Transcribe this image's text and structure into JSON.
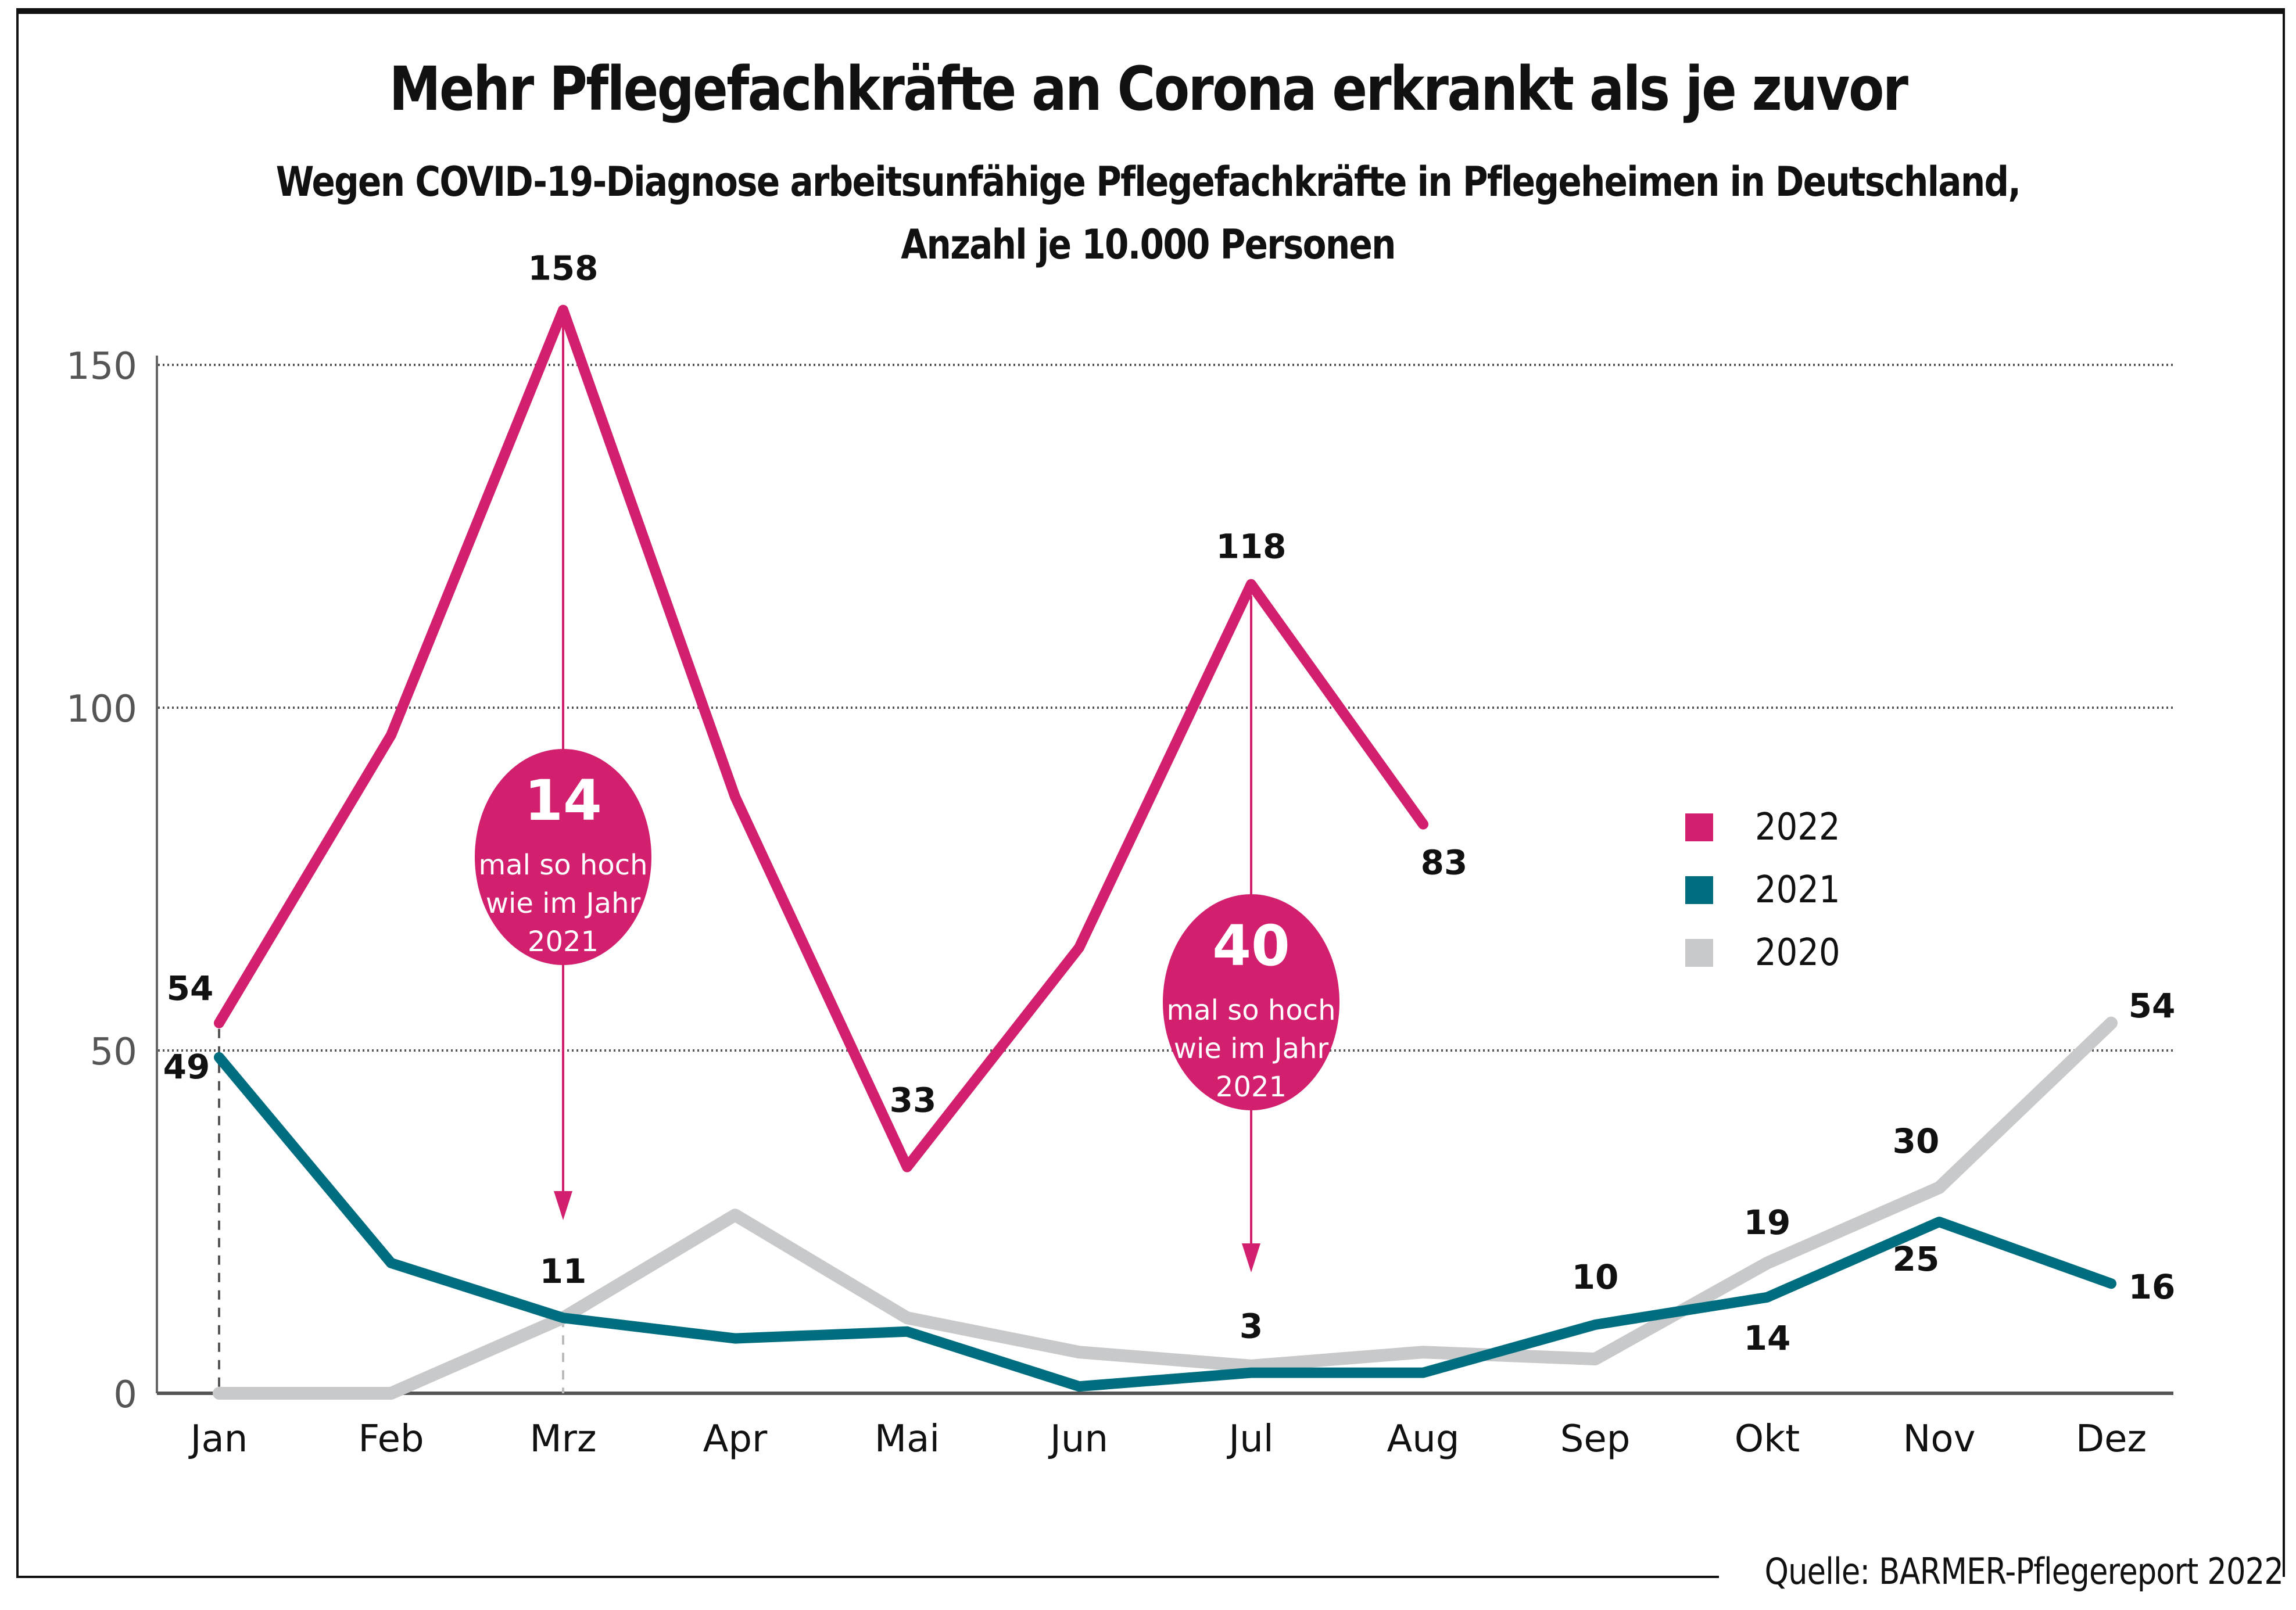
{
  "chart_data": {
    "type": "line",
    "title": "Mehr Pflegefachkräfte an Corona erkrankt als je zuvor",
    "subtitle": [
      "Wegen COVID-19-Diagnose arbeitsunfähige Pflegefachkräfte in Pflegeheimen in Deutschland,",
      "Anzahl je 10.000 Personen"
    ],
    "xlabel": "",
    "ylabel": "",
    "categories": [
      "Jan",
      "Feb",
      "Mrz",
      "Apr",
      "Mai",
      "Jun",
      "Jul",
      "Aug",
      "Sep",
      "Okt",
      "Nov",
      "Dez"
    ],
    "ylim": [
      0,
      160
    ],
    "yticks": [
      0,
      50,
      100,
      150
    ],
    "grid": true,
    "legend_position": "right",
    "series": [
      {
        "name": "2022",
        "color": "#D21F6E",
        "values": [
          54,
          96,
          158,
          87,
          33,
          65,
          118,
          83,
          null,
          null,
          null,
          null
        ]
      },
      {
        "name": "2021",
        "color": "#006E7F",
        "values": [
          49,
          19,
          11,
          8,
          9,
          1,
          3,
          3,
          10,
          14,
          25,
          16
        ]
      },
      {
        "name": "2020",
        "color": "#C8C9CA",
        "values": [
          0,
          0,
          11,
          26,
          11,
          6,
          4,
          6,
          5,
          19,
          30,
          54
        ]
      }
    ],
    "data_labels": [
      {
        "series": "2022",
        "month": "Jan",
        "text": "54"
      },
      {
        "series": "2021",
        "month": "Jan",
        "text": "49"
      },
      {
        "series": "2022",
        "month": "Mrz",
        "text": "158"
      },
      {
        "series": "2021",
        "month": "Mrz",
        "text": "11"
      },
      {
        "series": "2022",
        "month": "Mai",
        "text": "33"
      },
      {
        "series": "2022",
        "month": "Jul",
        "text": "118"
      },
      {
        "series": "2021",
        "month": "Jul",
        "text": "3"
      },
      {
        "series": "2022",
        "month": "Aug",
        "text": "83"
      },
      {
        "series": "2021",
        "month": "Sep",
        "text": "10"
      },
      {
        "series": "2020",
        "month": "Okt",
        "text": "19"
      },
      {
        "series": "2021",
        "month": "Okt",
        "text": "14"
      },
      {
        "series": "2020",
        "month": "Nov",
        "text": "30"
      },
      {
        "series": "2021",
        "month": "Nov",
        "text": "25"
      },
      {
        "series": "2020",
        "month": "Dez",
        "text": "54"
      },
      {
        "series": "2021",
        "month": "Dez",
        "text": "16"
      }
    ],
    "annotations": [
      {
        "month": "Mrz",
        "big": "14",
        "lines": [
          "mal so hoch",
          "wie im Jahr",
          "2021"
        ]
      },
      {
        "month": "Jul",
        "big": "40",
        "lines": [
          "mal so hoch",
          "wie im Jahr",
          "2021"
        ]
      }
    ]
  },
  "source": "Quelle: BARMER-Pflegereport 2022"
}
